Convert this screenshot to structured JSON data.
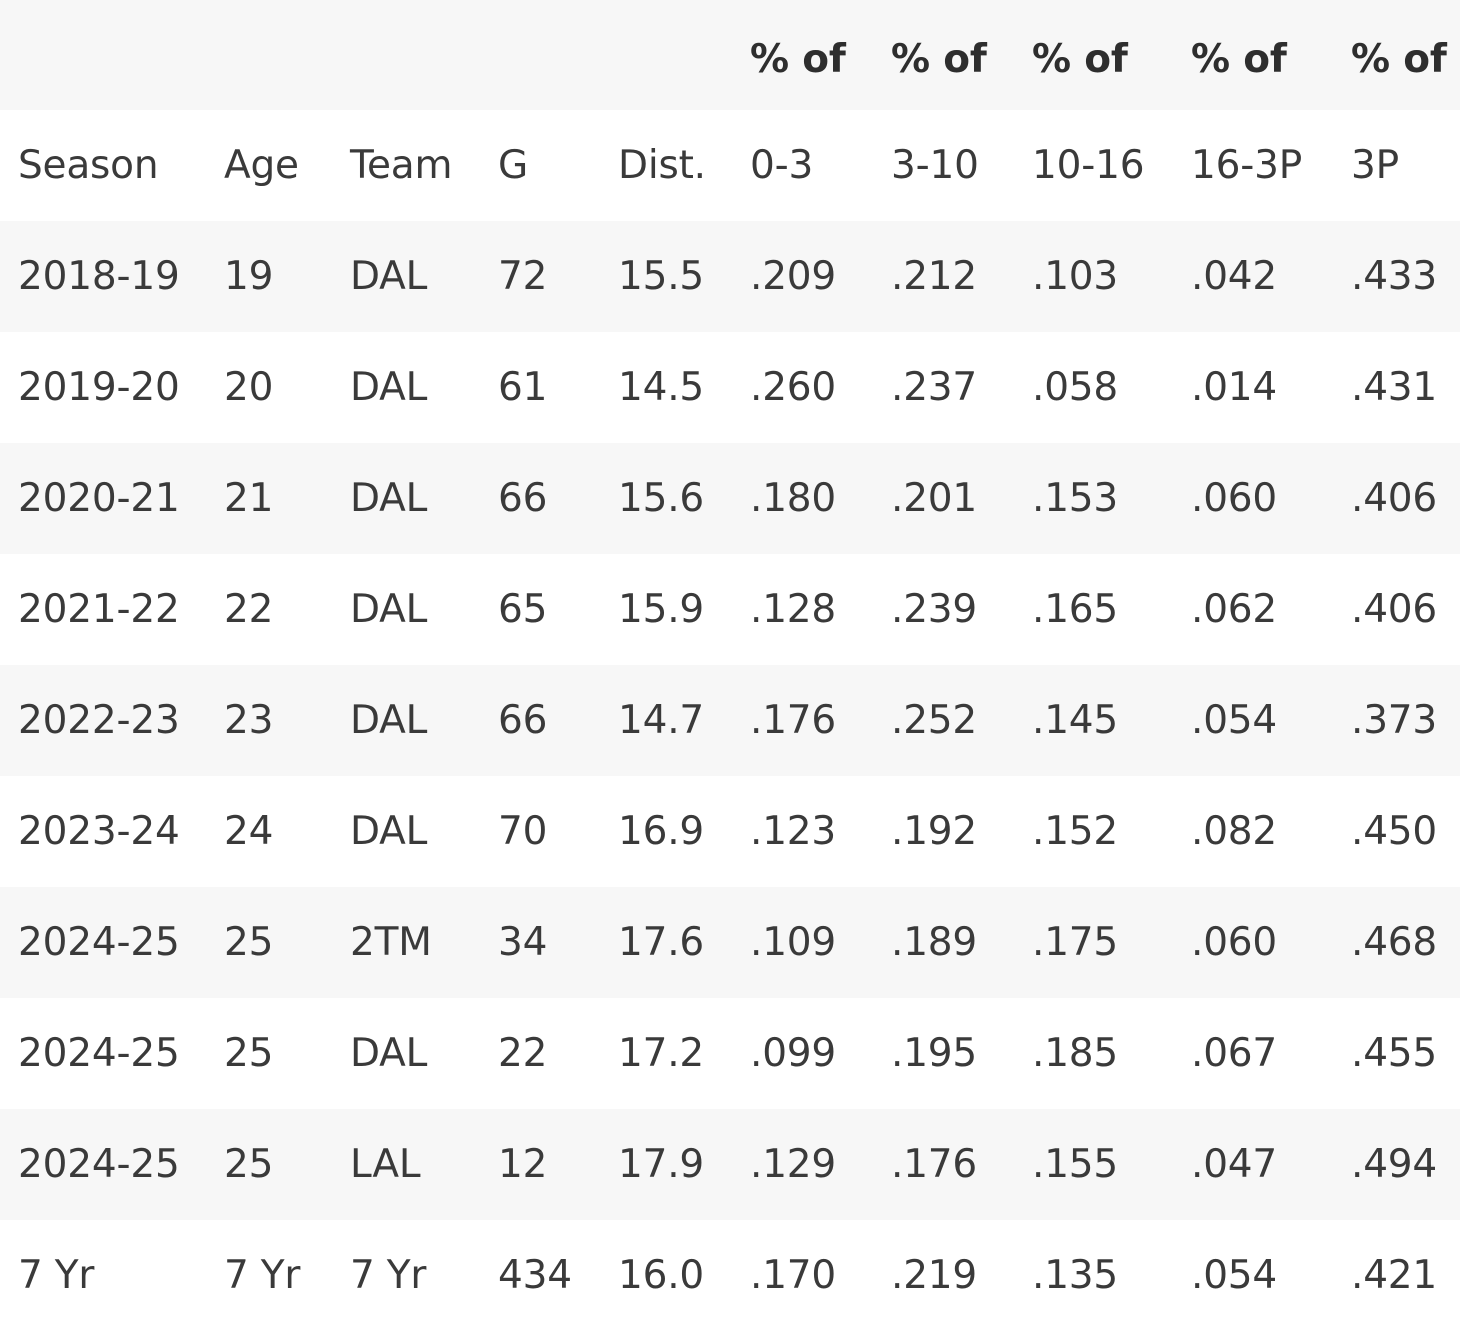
{
  "group_header": [
    "",
    "",
    "",
    "",
    "",
    "% of",
    "% of",
    "% of",
    "% of",
    "% of"
  ],
  "columns": [
    "Season",
    "Age",
    "Team",
    "G",
    "Dist.",
    "0-3",
    "3-10",
    "10-16",
    "16-3P",
    "3P"
  ],
  "rows": [
    [
      "2018-19",
      "19",
      "DAL",
      "72",
      "15.5",
      ".209",
      ".212",
      ".103",
      ".042",
      ".433"
    ],
    [
      "2019-20",
      "20",
      "DAL",
      "61",
      "14.5",
      ".260",
      ".237",
      ".058",
      ".014",
      ".431"
    ],
    [
      "2020-21",
      "21",
      "DAL",
      "66",
      "15.6",
      ".180",
      ".201",
      ".153",
      ".060",
      ".406"
    ],
    [
      "2021-22",
      "22",
      "DAL",
      "65",
      "15.9",
      ".128",
      ".239",
      ".165",
      ".062",
      ".406"
    ],
    [
      "2022-23",
      "23",
      "DAL",
      "66",
      "14.7",
      ".176",
      ".252",
      ".145",
      ".054",
      ".373"
    ],
    [
      "2023-24",
      "24",
      "DAL",
      "70",
      "16.9",
      ".123",
      ".192",
      ".152",
      ".082",
      ".450"
    ],
    [
      "2024-25",
      "25",
      "2TM",
      "34",
      "17.6",
      ".109",
      ".189",
      ".175",
      ".060",
      ".468"
    ],
    [
      "2024-25",
      "25",
      "DAL",
      "22",
      "17.2",
      ".099",
      ".195",
      ".185",
      ".067",
      ".455"
    ],
    [
      "2024-25",
      "25",
      "LAL",
      "12",
      "17.9",
      ".129",
      ".176",
      ".155",
      ".047",
      ".494"
    ],
    [
      "7 Yr",
      "7 Yr",
      "7 Yr",
      "434",
      "16.0",
      ".170",
      ".219",
      ".135",
      ".054",
      ".421"
    ]
  ]
}
